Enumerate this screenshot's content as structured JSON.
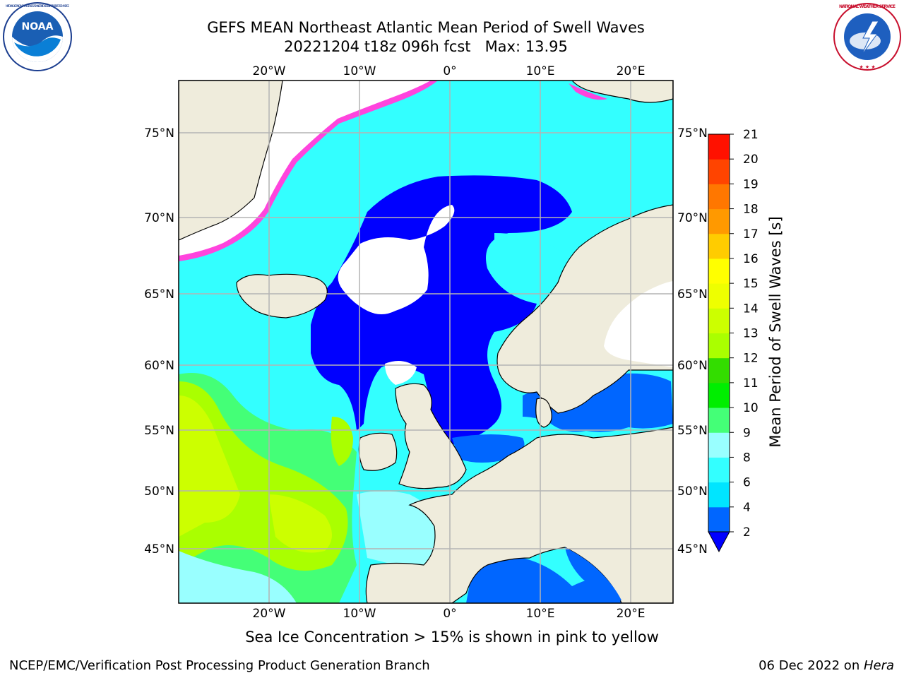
{
  "header": {
    "title_line1": "GEFS MEAN Northeast Atlantic Mean Period of Swell Waves",
    "title_line2": "20221204 t18z 096h fcst   Max: 13.95"
  },
  "logos": {
    "noaa_text": "NOAA",
    "noaa_ring_text": "NATIONAL OCEANIC AND ATMOSPHERIC ADMINISTRATION · U.S. DEPARTMENT OF COMMERCE",
    "nws_ring_text": "NATIONAL WEATHER SERVICE"
  },
  "map": {
    "lon_labels": [
      "20°W",
      "10°W",
      "0°",
      "10°E",
      "20°E"
    ],
    "lat_labels": [
      "75°N",
      "70°N",
      "65°N",
      "60°N",
      "55°N",
      "50°N",
      "45°N"
    ],
    "colors": {
      "land": "#efecdc",
      "ice": "#ff44dd",
      "grid": "#b4b4b4"
    }
  },
  "colorbar": {
    "title": "Mean Period of Swell Waves [s]",
    "ticks": [
      "2",
      "4",
      "6",
      "8",
      "9",
      "10",
      "11",
      "12",
      "13",
      "14",
      "15",
      "16",
      "17",
      "18",
      "19",
      "20",
      "21"
    ],
    "colors": [
      "#0066ff",
      "#00e5ff",
      "#33ffff",
      "#99ffff",
      "#44ff77",
      "#00ee00",
      "#33dd00",
      "#aaff00",
      "#ccff00",
      "#eeff00",
      "#ffff00",
      "#ffcc00",
      "#ff9900",
      "#ff7700",
      "#ff4400",
      "#ff1100",
      "#ff0000"
    ],
    "extend_color": "#0000ff"
  },
  "subtitle": "Sea Ice Concentration > 15% is shown in pink to yellow",
  "footer": {
    "left": "NCEP/EMC/Verification Post Processing Product Generation Branch",
    "right_prefix": "06 Dec 2022 on ",
    "right_host": "Hera"
  }
}
